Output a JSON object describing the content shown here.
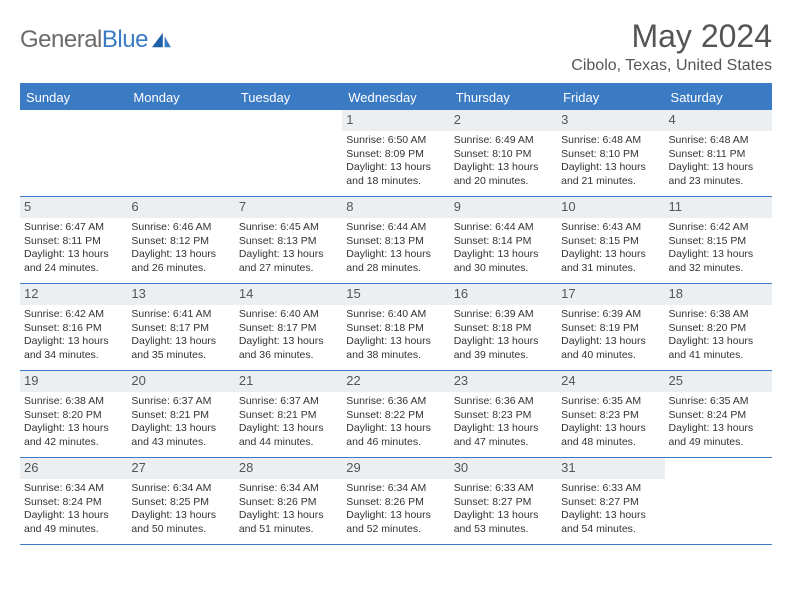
{
  "logo": {
    "text_general": "General",
    "text_blue": "Blue"
  },
  "title": "May 2024",
  "location": "Cibolo, Texas, United States",
  "weekdays": [
    "Sunday",
    "Monday",
    "Tuesday",
    "Wednesday",
    "Thursday",
    "Friday",
    "Saturday"
  ],
  "colors": {
    "accent": "#3b7bc4",
    "daynum_bg": "#eceff1",
    "text": "#333333",
    "muted": "#555555",
    "bg": "#ffffff"
  },
  "weeks": [
    [
      null,
      null,
      null,
      {
        "n": "1",
        "sunrise": "6:50 AM",
        "sunset": "8:09 PM",
        "dl1": "Daylight: 13 hours",
        "dl2": "and 18 minutes."
      },
      {
        "n": "2",
        "sunrise": "6:49 AM",
        "sunset": "8:10 PM",
        "dl1": "Daylight: 13 hours",
        "dl2": "and 20 minutes."
      },
      {
        "n": "3",
        "sunrise": "6:48 AM",
        "sunset": "8:10 PM",
        "dl1": "Daylight: 13 hours",
        "dl2": "and 21 minutes."
      },
      {
        "n": "4",
        "sunrise": "6:48 AM",
        "sunset": "8:11 PM",
        "dl1": "Daylight: 13 hours",
        "dl2": "and 23 minutes."
      }
    ],
    [
      {
        "n": "5",
        "sunrise": "6:47 AM",
        "sunset": "8:11 PM",
        "dl1": "Daylight: 13 hours",
        "dl2": "and 24 minutes."
      },
      {
        "n": "6",
        "sunrise": "6:46 AM",
        "sunset": "8:12 PM",
        "dl1": "Daylight: 13 hours",
        "dl2": "and 26 minutes."
      },
      {
        "n": "7",
        "sunrise": "6:45 AM",
        "sunset": "8:13 PM",
        "dl1": "Daylight: 13 hours",
        "dl2": "and 27 minutes."
      },
      {
        "n": "8",
        "sunrise": "6:44 AM",
        "sunset": "8:13 PM",
        "dl1": "Daylight: 13 hours",
        "dl2": "and 28 minutes."
      },
      {
        "n": "9",
        "sunrise": "6:44 AM",
        "sunset": "8:14 PM",
        "dl1": "Daylight: 13 hours",
        "dl2": "and 30 minutes."
      },
      {
        "n": "10",
        "sunrise": "6:43 AM",
        "sunset": "8:15 PM",
        "dl1": "Daylight: 13 hours",
        "dl2": "and 31 minutes."
      },
      {
        "n": "11",
        "sunrise": "6:42 AM",
        "sunset": "8:15 PM",
        "dl1": "Daylight: 13 hours",
        "dl2": "and 32 minutes."
      }
    ],
    [
      {
        "n": "12",
        "sunrise": "6:42 AM",
        "sunset": "8:16 PM",
        "dl1": "Daylight: 13 hours",
        "dl2": "and 34 minutes."
      },
      {
        "n": "13",
        "sunrise": "6:41 AM",
        "sunset": "8:17 PM",
        "dl1": "Daylight: 13 hours",
        "dl2": "and 35 minutes."
      },
      {
        "n": "14",
        "sunrise": "6:40 AM",
        "sunset": "8:17 PM",
        "dl1": "Daylight: 13 hours",
        "dl2": "and 36 minutes."
      },
      {
        "n": "15",
        "sunrise": "6:40 AM",
        "sunset": "8:18 PM",
        "dl1": "Daylight: 13 hours",
        "dl2": "and 38 minutes."
      },
      {
        "n": "16",
        "sunrise": "6:39 AM",
        "sunset": "8:18 PM",
        "dl1": "Daylight: 13 hours",
        "dl2": "and 39 minutes."
      },
      {
        "n": "17",
        "sunrise": "6:39 AM",
        "sunset": "8:19 PM",
        "dl1": "Daylight: 13 hours",
        "dl2": "and 40 minutes."
      },
      {
        "n": "18",
        "sunrise": "6:38 AM",
        "sunset": "8:20 PM",
        "dl1": "Daylight: 13 hours",
        "dl2": "and 41 minutes."
      }
    ],
    [
      {
        "n": "19",
        "sunrise": "6:38 AM",
        "sunset": "8:20 PM",
        "dl1": "Daylight: 13 hours",
        "dl2": "and 42 minutes."
      },
      {
        "n": "20",
        "sunrise": "6:37 AM",
        "sunset": "8:21 PM",
        "dl1": "Daylight: 13 hours",
        "dl2": "and 43 minutes."
      },
      {
        "n": "21",
        "sunrise": "6:37 AM",
        "sunset": "8:21 PM",
        "dl1": "Daylight: 13 hours",
        "dl2": "and 44 minutes."
      },
      {
        "n": "22",
        "sunrise": "6:36 AM",
        "sunset": "8:22 PM",
        "dl1": "Daylight: 13 hours",
        "dl2": "and 46 minutes."
      },
      {
        "n": "23",
        "sunrise": "6:36 AM",
        "sunset": "8:23 PM",
        "dl1": "Daylight: 13 hours",
        "dl2": "and 47 minutes."
      },
      {
        "n": "24",
        "sunrise": "6:35 AM",
        "sunset": "8:23 PM",
        "dl1": "Daylight: 13 hours",
        "dl2": "and 48 minutes."
      },
      {
        "n": "25",
        "sunrise": "6:35 AM",
        "sunset": "8:24 PM",
        "dl1": "Daylight: 13 hours",
        "dl2": "and 49 minutes."
      }
    ],
    [
      {
        "n": "26",
        "sunrise": "6:34 AM",
        "sunset": "8:24 PM",
        "dl1": "Daylight: 13 hours",
        "dl2": "and 49 minutes."
      },
      {
        "n": "27",
        "sunrise": "6:34 AM",
        "sunset": "8:25 PM",
        "dl1": "Daylight: 13 hours",
        "dl2": "and 50 minutes."
      },
      {
        "n": "28",
        "sunrise": "6:34 AM",
        "sunset": "8:26 PM",
        "dl1": "Daylight: 13 hours",
        "dl2": "and 51 minutes."
      },
      {
        "n": "29",
        "sunrise": "6:34 AM",
        "sunset": "8:26 PM",
        "dl1": "Daylight: 13 hours",
        "dl2": "and 52 minutes."
      },
      {
        "n": "30",
        "sunrise": "6:33 AM",
        "sunset": "8:27 PM",
        "dl1": "Daylight: 13 hours",
        "dl2": "and 53 minutes."
      },
      {
        "n": "31",
        "sunrise": "6:33 AM",
        "sunset": "8:27 PM",
        "dl1": "Daylight: 13 hours",
        "dl2": "and 54 minutes."
      },
      null
    ]
  ],
  "labels": {
    "sunrise": "Sunrise: ",
    "sunset": "Sunset: "
  }
}
